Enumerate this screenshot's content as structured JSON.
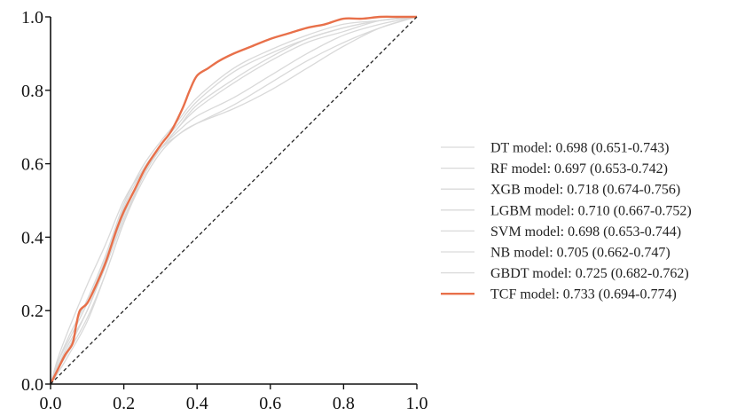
{
  "chart_data": {
    "type": "line",
    "title": "",
    "xlabel": "",
    "ylabel": "",
    "xlim": [
      0.0,
      1.0
    ],
    "ylim": [
      0.0,
      1.0
    ],
    "x_ticks": [
      "0.0",
      "0.2",
      "0.4",
      "0.6",
      "0.8",
      "1.0"
    ],
    "y_ticks": [
      "0.0",
      "0.2",
      "0.4",
      "0.6",
      "0.8",
      "1.0"
    ],
    "x_tick_values": [
      0.0,
      0.2,
      0.4,
      0.6,
      0.8,
      1.0
    ],
    "y_tick_values": [
      0.0,
      0.2,
      0.4,
      0.6,
      0.8,
      1.0
    ],
    "grid": false,
    "legend_position": "right",
    "reference_line": {
      "name": "chance",
      "style": "dashed",
      "color": "#222222",
      "points": [
        [
          0,
          0
        ],
        [
          1,
          1
        ]
      ]
    },
    "series": [
      {
        "name": "DT model",
        "label": "DT model: 0.698 (0.651-0.743)",
        "auc": 0.698,
        "ci": [
          0.651,
          0.743
        ],
        "color": "#d9d9d9",
        "x": [
          0,
          0.02,
          0.05,
          0.1,
          0.15,
          0.2,
          0.25,
          0.3,
          0.35,
          0.4,
          0.5,
          0.6,
          0.7,
          0.8,
          0.9,
          1.0
        ],
        "y": [
          0,
          0.05,
          0.1,
          0.2,
          0.32,
          0.45,
          0.56,
          0.64,
          0.69,
          0.73,
          0.78,
          0.84,
          0.9,
          0.95,
          0.98,
          1.0
        ]
      },
      {
        "name": "RF model",
        "label": "RF model: 0.697 (0.653-0.742)",
        "auc": 0.697,
        "ci": [
          0.653,
          0.742
        ],
        "color": "#d9d9d9",
        "x": [
          0,
          0.02,
          0.05,
          0.1,
          0.15,
          0.2,
          0.25,
          0.3,
          0.35,
          0.4,
          0.5,
          0.6,
          0.7,
          0.8,
          0.9,
          1.0
        ],
        "y": [
          0,
          0.04,
          0.09,
          0.18,
          0.3,
          0.44,
          0.55,
          0.63,
          0.68,
          0.71,
          0.75,
          0.8,
          0.86,
          0.92,
          0.97,
          1.0
        ]
      },
      {
        "name": "XGB model",
        "label": "XGB model: 0.718 (0.674-0.756)",
        "auc": 0.718,
        "ci": [
          0.674,
          0.756
        ],
        "color": "#d9d9d9",
        "x": [
          0,
          0.02,
          0.05,
          0.1,
          0.15,
          0.2,
          0.25,
          0.3,
          0.35,
          0.4,
          0.5,
          0.6,
          0.7,
          0.8,
          0.9,
          1.0
        ],
        "y": [
          0,
          0.06,
          0.12,
          0.22,
          0.34,
          0.48,
          0.58,
          0.65,
          0.71,
          0.77,
          0.85,
          0.9,
          0.94,
          0.97,
          0.99,
          1.0
        ]
      },
      {
        "name": "LGBM model",
        "label": "LGBM model: 0.710 (0.667-0.752)",
        "auc": 0.71,
        "ci": [
          0.667,
          0.752
        ],
        "color": "#d9d9d9",
        "x": [
          0,
          0.02,
          0.05,
          0.1,
          0.15,
          0.2,
          0.25,
          0.3,
          0.35,
          0.4,
          0.5,
          0.6,
          0.7,
          0.8,
          0.9,
          1.0
        ],
        "y": [
          0,
          0.05,
          0.11,
          0.2,
          0.33,
          0.46,
          0.57,
          0.64,
          0.7,
          0.75,
          0.82,
          0.88,
          0.93,
          0.96,
          0.99,
          1.0
        ]
      },
      {
        "name": "SVM model",
        "label": "SVM model: 0.698 (0.653-0.744)",
        "auc": 0.698,
        "ci": [
          0.653,
          0.744
        ],
        "color": "#d9d9d9",
        "x": [
          0,
          0.02,
          0.05,
          0.1,
          0.15,
          0.2,
          0.25,
          0.3,
          0.35,
          0.4,
          0.5,
          0.6,
          0.7,
          0.8,
          0.9,
          1.0
        ],
        "y": [
          0,
          0.07,
          0.15,
          0.27,
          0.38,
          0.5,
          0.58,
          0.64,
          0.68,
          0.71,
          0.76,
          0.82,
          0.88,
          0.93,
          0.97,
          1.0
        ]
      },
      {
        "name": "NB model",
        "label": "NB model: 0.705 (0.662-0.747)",
        "auc": 0.705,
        "ci": [
          0.662,
          0.747
        ],
        "color": "#d9d9d9",
        "x": [
          0,
          0.02,
          0.05,
          0.1,
          0.15,
          0.2,
          0.25,
          0.3,
          0.35,
          0.4,
          0.5,
          0.6,
          0.7,
          0.8,
          0.9,
          1.0
        ],
        "y": [
          0,
          0.03,
          0.08,
          0.17,
          0.3,
          0.44,
          0.56,
          0.64,
          0.7,
          0.76,
          0.83,
          0.89,
          0.94,
          0.97,
          0.99,
          1.0
        ]
      },
      {
        "name": "GBDT model",
        "label": "GBDT model: 0.725 (0.682-0.762)",
        "auc": 0.725,
        "ci": [
          0.682,
          0.762
        ],
        "color": "#d9d9d9",
        "x": [
          0,
          0.02,
          0.05,
          0.1,
          0.15,
          0.2,
          0.25,
          0.3,
          0.35,
          0.4,
          0.5,
          0.6,
          0.7,
          0.8,
          0.9,
          1.0
        ],
        "y": [
          0,
          0.06,
          0.13,
          0.23,
          0.35,
          0.49,
          0.59,
          0.66,
          0.72,
          0.78,
          0.86,
          0.91,
          0.95,
          0.98,
          0.99,
          1.0
        ]
      },
      {
        "name": "TCF model",
        "label": "TCF model: 0.733 (0.694-0.774)",
        "auc": 0.733,
        "ci": [
          0.694,
          0.774
        ],
        "color": "#e8704a",
        "x": [
          0,
          0.02,
          0.04,
          0.06,
          0.07,
          0.08,
          0.1,
          0.12,
          0.15,
          0.18,
          0.2,
          0.23,
          0.26,
          0.3,
          0.33,
          0.36,
          0.38,
          0.4,
          0.43,
          0.46,
          0.5,
          0.55,
          0.6,
          0.65,
          0.7,
          0.75,
          0.8,
          0.85,
          0.9,
          0.95,
          1.0
        ],
        "y": [
          0,
          0.04,
          0.08,
          0.11,
          0.16,
          0.2,
          0.22,
          0.26,
          0.33,
          0.42,
          0.47,
          0.53,
          0.59,
          0.65,
          0.69,
          0.75,
          0.8,
          0.84,
          0.86,
          0.88,
          0.9,
          0.92,
          0.94,
          0.955,
          0.97,
          0.98,
          0.995,
          0.995,
          1.0,
          1.0,
          1.0
        ]
      }
    ]
  }
}
